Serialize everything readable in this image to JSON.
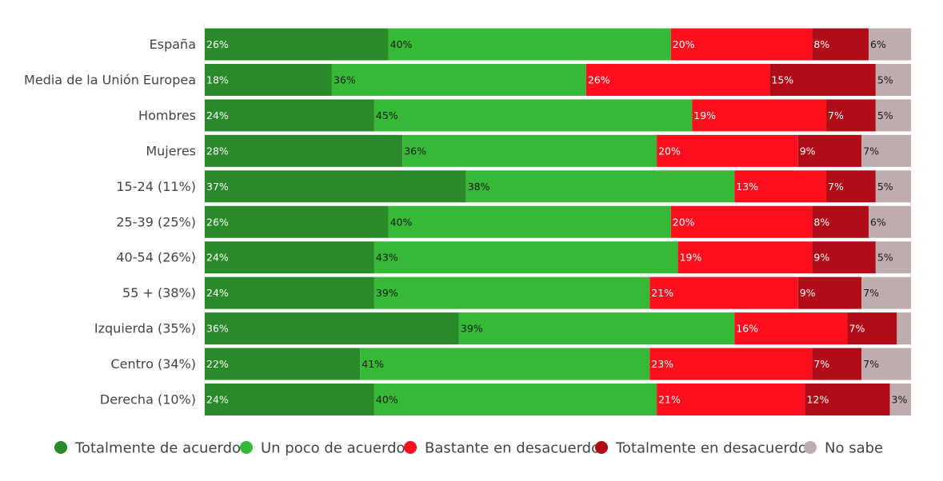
{
  "chart_data": {
    "type": "bar",
    "orientation": "horizontal",
    "stacked": true,
    "normalized": true,
    "categories": [
      "España",
      "Media de la Unión Europea",
      "Hombres",
      "Mujeres",
      "15-24 (11%)",
      "25-39 (25%)",
      "40-54 (26%)",
      "55 + (38%)",
      "Izquierda (35%)",
      "Centro (34%)",
      "Derecha (10%)"
    ],
    "series": [
      {
        "name": "Totalmente de acuerdo",
        "color": "#2a8a2a",
        "label_color": "#ffffff",
        "values": [
          26,
          18,
          24,
          28,
          37,
          26,
          24,
          24,
          36,
          22,
          24
        ]
      },
      {
        "name": "Un poco de acuerdo",
        "color": "#36b936",
        "label_color": "#1a1a1a",
        "values": [
          40,
          36,
          45,
          36,
          38,
          40,
          43,
          39,
          39,
          41,
          40
        ]
      },
      {
        "name": "Bastante en desacuerdo",
        "color": "#ff0e1e",
        "label_color": "#ffffff",
        "values": [
          20,
          26,
          19,
          20,
          13,
          20,
          19,
          21,
          16,
          23,
          21
        ]
      },
      {
        "name": "Totalmente en desacuerdo",
        "color": "#b00c18",
        "label_color": "#ffffff",
        "values": [
          8,
          15,
          7,
          9,
          7,
          8,
          9,
          9,
          7,
          7,
          12
        ]
      },
      {
        "name": "No sabe",
        "color": "#bfadad",
        "label_color": "#1a1a1a",
        "values": [
          6,
          5,
          5,
          7,
          5,
          6,
          5,
          7,
          2,
          7,
          3
        ],
        "labels": [
          "6%",
          "5%",
          "5%",
          "7%",
          "5%",
          "6%",
          "5%",
          "7%",
          "",
          "7%",
          "3%"
        ]
      }
    ],
    "unit": "%",
    "legend_position": "bottom",
    "grid": false
  }
}
